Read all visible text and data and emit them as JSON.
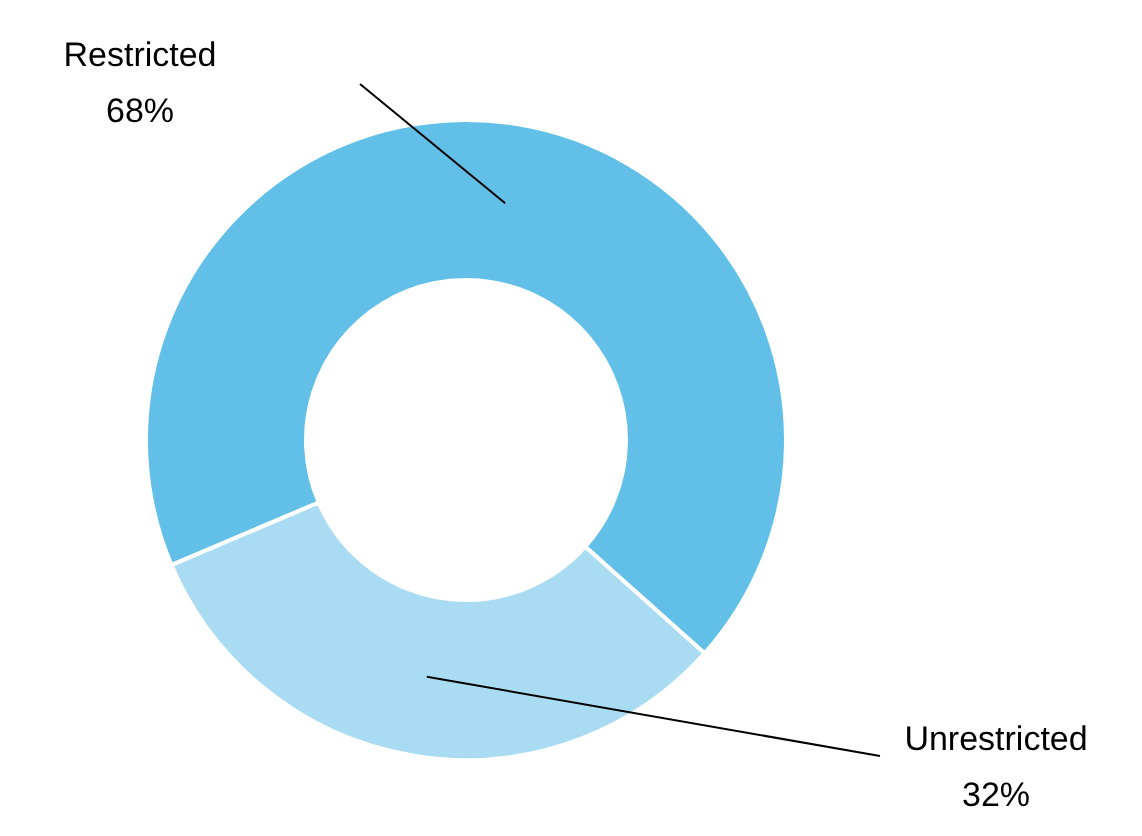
{
  "chart_data": {
    "type": "donut",
    "categories": [
      "Restricted",
      "Unrestricted"
    ],
    "values": [
      68,
      32
    ],
    "colors": [
      "#62c0e8",
      "#a9dcf2"
    ],
    "value_labels": [
      "68%",
      "32%"
    ]
  }
}
